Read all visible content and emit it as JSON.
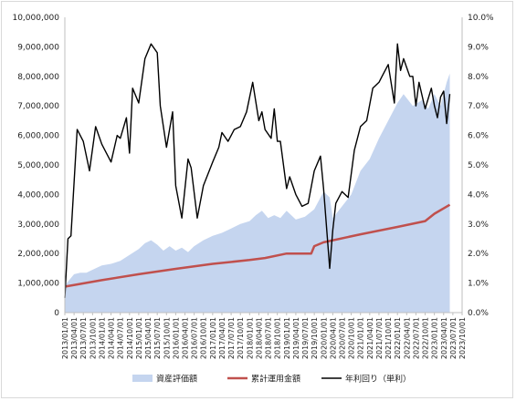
{
  "chart_data": {
    "type": "line",
    "title": "",
    "xlabel": "",
    "ylabel": "",
    "y_left": {
      "min": 0,
      "max": 10000000,
      "ticks": [
        "0",
        "1,000,000",
        "2,000,000",
        "3,000,000",
        "4,000,000",
        "5,000,000",
        "6,000,000",
        "7,000,000",
        "8,000,000",
        "9,000,000",
        "10,000,000"
      ]
    },
    "y_right": {
      "min": 0,
      "max": 10,
      "ticks": [
        "0.0%",
        "1.0%",
        "2.0%",
        "3.0%",
        "4.0%",
        "5.0%",
        "6.0%",
        "7.0%",
        "8.0%",
        "9.0%",
        "10.0%"
      ]
    },
    "x_ticks": [
      "2013/01/01",
      "2013/04/01",
      "2013/07/01",
      "2013/10/01",
      "2014/01/01",
      "2014/04/01",
      "2014/07/01",
      "2014/10/01",
      "2015/01/01",
      "2015/04/01",
      "2015/07/01",
      "2015/10/01",
      "2016/01/01",
      "2016/04/01",
      "2016/07/01",
      "2016/10/01",
      "2017/01/01",
      "2017/04/01",
      "2017/07/01",
      "2017/10/01",
      "2018/01/01",
      "2018/04/01",
      "2018/07/01",
      "2018/10/01",
      "2019/01/01",
      "2019/04/01",
      "2019/07/01",
      "2019/10/01",
      "2020/01/01",
      "2020/04/01",
      "2020/07/01",
      "2020/10/01",
      "2021/01/01",
      "2021/04/01",
      "2021/07/01",
      "2021/10/01",
      "2022/01/01",
      "2022/04/01",
      "2022/07/01",
      "2022/10/01",
      "2023/01/01",
      "2023/04/01",
      "2023/07/01",
      "2023/10/01"
    ],
    "grid": false,
    "legend_position": "bottom",
    "series": [
      {
        "name": "資産評価額",
        "type": "area",
        "axis": "left",
        "color": "#c5d5ef",
        "x": [
          "2013/01/01",
          "2013/02/01",
          "2013/04/01",
          "2013/06/01",
          "2013/08/01",
          "2013/10/01",
          "2014/01/01",
          "2014/04/01",
          "2014/07/01",
          "2014/10/01",
          "2015/01/01",
          "2015/03/01",
          "2015/05/01",
          "2015/07/01",
          "2015/09/01",
          "2015/11/01",
          "2016/01/01",
          "2016/03/01",
          "2016/05/01",
          "2016/07/01",
          "2016/10/01",
          "2017/01/01",
          "2017/04/01",
          "2017/07/01",
          "2017/10/01",
          "2018/01/01",
          "2018/03/01",
          "2018/05/01",
          "2018/07/01",
          "2018/09/01",
          "2018/11/01",
          "2019/01/01",
          "2019/04/01",
          "2019/07/01",
          "2019/10/01",
          "2020/01/01",
          "2020/03/01",
          "2020/04/01",
          "2020/07/01",
          "2020/10/01",
          "2021/01/01",
          "2021/04/01",
          "2021/07/01",
          "2021/10/01",
          "2022/01/01",
          "2022/03/01",
          "2022/06/01",
          "2022/09/01",
          "2022/11/01",
          "2023/01/01",
          "2023/03/01",
          "2023/05/01",
          "2023/06/01"
        ],
        "values": [
          900000,
          1050000,
          1300000,
          1350000,
          1350000,
          1450000,
          1600000,
          1650000,
          1750000,
          1950000,
          2150000,
          2350000,
          2450000,
          2300000,
          2100000,
          2250000,
          2100000,
          2200000,
          2050000,
          2250000,
          2450000,
          2600000,
          2700000,
          2850000,
          3000000,
          3100000,
          3300000,
          3450000,
          3200000,
          3300000,
          3200000,
          3450000,
          3150000,
          3250000,
          3500000,
          4100000,
          3900000,
          3200000,
          3600000,
          4000000,
          4800000,
          5200000,
          5900000,
          6500000,
          7100000,
          7400000,
          7000000,
          7200000,
          6900000,
          7400000,
          7000000,
          7800000,
          8100000
        ]
      },
      {
        "name": "累計運用金額",
        "type": "line",
        "axis": "left",
        "color": "#c0504d",
        "x": [
          "2013/01/01",
          "2014/01/01",
          "2015/01/01",
          "2016/01/01",
          "2017/01/01",
          "2018/01/01",
          "2018/06/01",
          "2019/01/01",
          "2019/09/01",
          "2019/10/01",
          "2020/01/01",
          "2021/01/01",
          "2022/01/01",
          "2022/10/01",
          "2023/01/01",
          "2023/06/01"
        ],
        "values": [
          880000,
          1100000,
          1300000,
          1480000,
          1650000,
          1780000,
          1850000,
          2000000,
          2000000,
          2250000,
          2380000,
          2650000,
          2900000,
          3100000,
          3350000,
          3650000
        ]
      },
      {
        "name": "年利回り（単利）",
        "type": "line",
        "axis": "right",
        "color": "#000000",
        "x": [
          "2013/01/01",
          "2013/02/01",
          "2013/03/01",
          "2013/05/01",
          "2013/07/01",
          "2013/09/01",
          "2013/11/01",
          "2014/01/01",
          "2014/04/01",
          "2014/06/01",
          "2014/07/01",
          "2014/09/01",
          "2014/10/01",
          "2014/11/01",
          "2015/01/01",
          "2015/03/01",
          "2015/05/01",
          "2015/07/01",
          "2015/08/01",
          "2015/10/01",
          "2015/12/01",
          "2016/01/01",
          "2016/03/01",
          "2016/05/01",
          "2016/06/01",
          "2016/08/01",
          "2016/10/01",
          "2017/01/01",
          "2017/03/01",
          "2017/04/01",
          "2017/06/01",
          "2017/08/01",
          "2017/10/01",
          "2017/12/01",
          "2018/02/01",
          "2018/04/01",
          "2018/05/01",
          "2018/06/01",
          "2018/08/01",
          "2018/09/01",
          "2018/10/01",
          "2018/11/01",
          "2019/01/01",
          "2019/02/01",
          "2019/04/01",
          "2019/06/01",
          "2019/08/01",
          "2019/10/01",
          "2019/12/01",
          "2020/01/01",
          "2020/03/01",
          "2020/04/01",
          "2020/05/01",
          "2020/07/01",
          "2020/09/01",
          "2020/11/01",
          "2021/01/01",
          "2021/03/01",
          "2021/05/01",
          "2021/07/01",
          "2021/08/01",
          "2021/10/01",
          "2021/12/01",
          "2022/01/01",
          "2022/02/01",
          "2022/03/01",
          "2022/04/01",
          "2022/05/01",
          "2022/06/01",
          "2022/07/01",
          "2022/08/01",
          "2022/10/01",
          "2022/12/01",
          "2023/01/01",
          "2023/02/01",
          "2023/03/01",
          "2023/04/01",
          "2023/05/01",
          "2023/06/01"
        ],
        "values": [
          0.5,
          2.5,
          2.6,
          6.2,
          5.8,
          4.8,
          6.3,
          5.7,
          5.1,
          6.0,
          5.9,
          6.6,
          5.4,
          7.6,
          7.1,
          8.6,
          9.1,
          8.8,
          7.0,
          5.6,
          6.8,
          4.3,
          3.2,
          5.2,
          4.9,
          3.2,
          4.3,
          5.1,
          5.6,
          6.1,
          5.8,
          6.2,
          6.3,
          6.8,
          7.8,
          6.5,
          6.8,
          6.2,
          5.9,
          6.9,
          5.8,
          5.8,
          4.2,
          4.6,
          4.0,
          3.6,
          3.7,
          4.8,
          5.3,
          4.2,
          1.5,
          2.8,
          3.7,
          4.1,
          3.9,
          5.5,
          6.3,
          6.5,
          7.6,
          7.8,
          8.0,
          8.4,
          7.1,
          9.1,
          8.2,
          8.6,
          8.3,
          8.0,
          8.0,
          7.0,
          7.8,
          6.9,
          7.6,
          7.0,
          6.6,
          7.3,
          7.5,
          6.4,
          7.4
        ]
      }
    ]
  }
}
